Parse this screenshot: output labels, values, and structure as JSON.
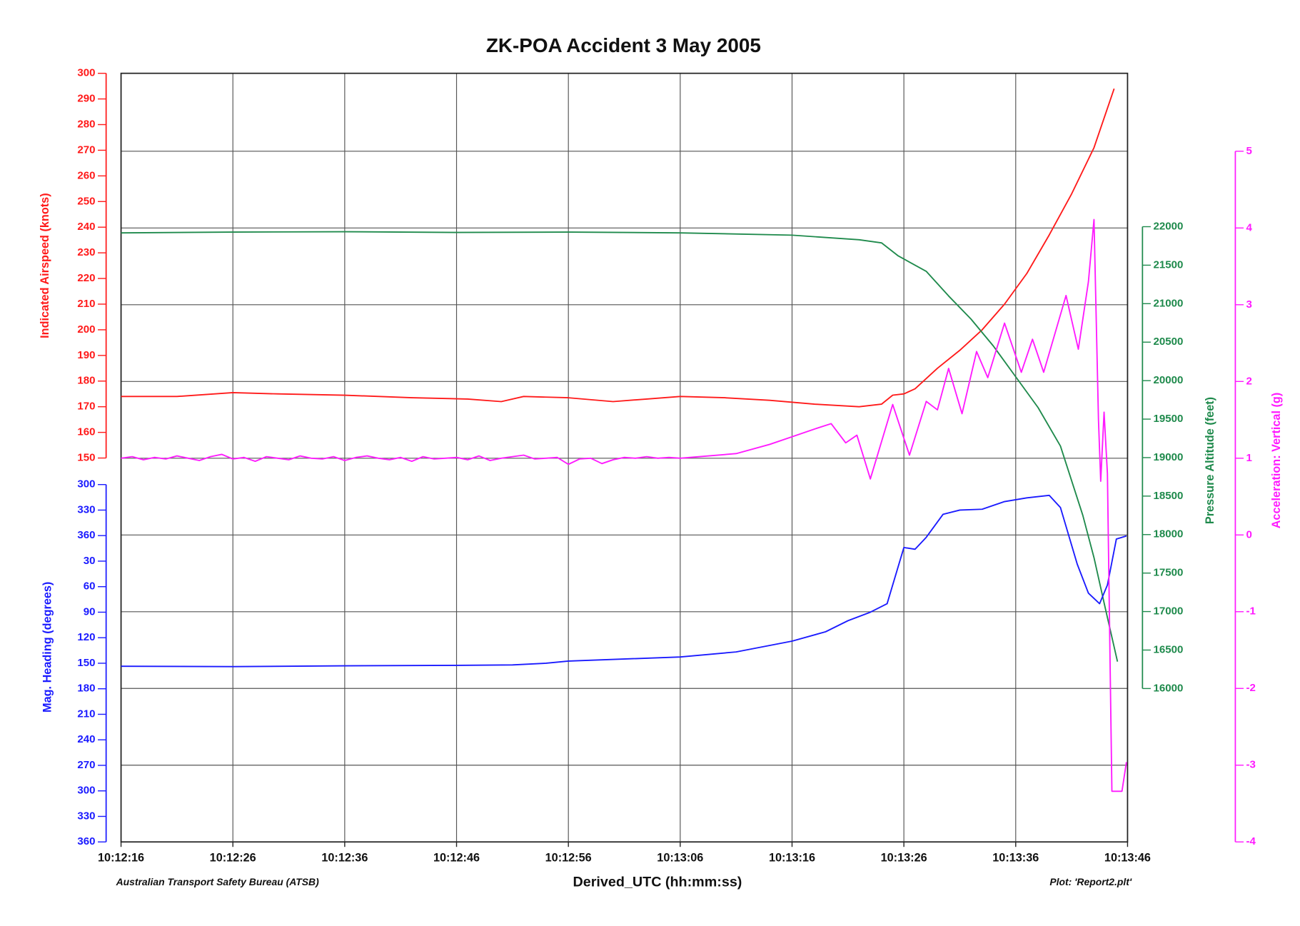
{
  "chart_data": {
    "type": "line",
    "title": "ZK-POA   Accident   3   May   2005",
    "xlabel": "Derived_UTC   (hh:mm:ss)",
    "notes": [
      "Australian   Transport   Safety   Bureau   (ATSB)",
      "Plot:   'Report2.plt'"
    ],
    "xlim": [
      36736,
      36826
    ],
    "xticks": [
      {
        "value": 36736,
        "label": "10:12:16"
      },
      {
        "value": 36746,
        "label": "10:12:26"
      },
      {
        "value": 36756,
        "label": "10:12:36"
      },
      {
        "value": 36766,
        "label": "10:12:46"
      },
      {
        "value": 36776,
        "label": "10:12:56"
      },
      {
        "value": 36786,
        "label": "10:13:06"
      },
      {
        "value": 36796,
        "label": "10:13:16"
      },
      {
        "value": 36806,
        "label": "10:13:26"
      },
      {
        "value": 36816,
        "label": "10:13:36"
      },
      {
        "value": 36826,
        "label": "10:13:46"
      }
    ],
    "ylabel": "Indicated   Airspeed   (knots)",
    "ylim": [
      150,
      300
    ],
    "yticks": [
      150,
      160,
      170,
      180,
      190,
      200,
      210,
      220,
      230,
      240,
      250,
      260,
      270,
      280,
      290,
      300
    ],
    "y3label": "Mag.   Heading   (degrees)",
    "y3lim": [
      720,
      300
    ],
    "y3ticks": [
      {
        "value": 300,
        "label": "300"
      },
      {
        "value": 330,
        "label": "330"
      },
      {
        "value": 360,
        "label": "360"
      },
      {
        "value": 390,
        "label": "30"
      },
      {
        "value": 420,
        "label": "60"
      },
      {
        "value": 450,
        "label": "90"
      },
      {
        "value": 480,
        "label": "120"
      },
      {
        "value": 510,
        "label": "150"
      },
      {
        "value": 540,
        "label": "180"
      },
      {
        "value": 570,
        "label": "210"
      },
      {
        "value": 600,
        "label": "240"
      },
      {
        "value": 630,
        "label": "270"
      },
      {
        "value": 660,
        "label": "300"
      },
      {
        "value": 690,
        "label": "330"
      },
      {
        "value": 720,
        "label": "360"
      }
    ],
    "y2label": "Pressure   Altitude   (feet)",
    "y2lim": [
      16000,
      22000
    ],
    "y2ticks": [
      16000,
      16500,
      17000,
      17500,
      18000,
      18500,
      19000,
      19500,
      20000,
      20500,
      21000,
      21500,
      22000
    ],
    "y4label": "Acceleration:   Vertical   (g)",
    "y4lim": [
      -4,
      5
    ],
    "y4ticks": [
      -4,
      -3,
      -2,
      -1,
      0,
      1,
      2,
      3,
      4,
      5
    ],
    "grid": true,
    "grid_axis": "y4",
    "series": [
      {
        "axis": "y",
        "color": "#ff1a1a",
        "x": [
          36736,
          36741,
          36746,
          36750,
          36756,
          36762,
          36767,
          36770,
          36772,
          36776,
          36780,
          36783,
          36786,
          36790,
          36794,
          36798,
          36802,
          36804,
          36805,
          36806,
          36807,
          36809,
          36811,
          36813,
          36815,
          36817,
          36819,
          36821,
          36823,
          36824.8
        ],
        "values": [
          174,
          174,
          175.5,
          175,
          174.5,
          173.5,
          173,
          172,
          174,
          173.5,
          172,
          173,
          174,
          173.5,
          172.5,
          171,
          170,
          171,
          174.5,
          175,
          177,
          185,
          192,
          200,
          210,
          222,
          237,
          253,
          271,
          294
        ]
      },
      {
        "axis": "y2",
        "color": "#1f8a4c",
        "x": [
          36736,
          36746,
          36756,
          36766,
          36776,
          36786,
          36796,
          36802,
          36804,
          36805.5,
          36807,
          36808,
          36810,
          36812,
          36814,
          36816,
          36818,
          36820,
          36822,
          36823,
          36824,
          36825.1
        ],
        "values": [
          21920,
          21930,
          21935,
          21925,
          21930,
          21920,
          21890,
          21830,
          21790,
          21620,
          21500,
          21420,
          21100,
          20800,
          20450,
          20050,
          19650,
          19150,
          18250,
          17700,
          17050,
          16350
        ]
      },
      {
        "axis": "y3",
        "color": "#1a1aff",
        "x": [
          36736,
          36746,
          36756,
          36766,
          36771,
          36774,
          36776,
          36786,
          36791,
          36796,
          36799,
          36801,
          36803,
          36804.5,
          36806,
          36807,
          36808,
          36809.5,
          36811,
          36813,
          36815,
          36817,
          36819,
          36820,
          36821.5,
          36822.5,
          36823.5,
          36824.2,
          36825,
          36825.9
        ],
        "values": [
          513.5,
          514,
          513,
          512.5,
          512,
          510,
          507.5,
          502.6,
          496.7,
          484,
          473,
          460,
          450,
          440,
          374,
          376,
          362,
          335,
          330,
          329,
          320,
          315.6,
          312.7,
          327,
          393.5,
          427.6,
          440,
          418,
          364,
          360.4
        ]
      },
      {
        "axis": "y4",
        "color": "#ff1aff",
        "x": [
          36736,
          36737,
          36738,
          36739,
          36740,
          36741,
          36742,
          36743,
          36744,
          36745,
          36746,
          36747,
          36748,
          36749,
          36750,
          36751,
          36752,
          36753,
          36754,
          36755,
          36756,
          36757,
          36758,
          36759,
          36760,
          36761,
          36762,
          36763,
          36764,
          36765,
          36766,
          36767,
          36768,
          36769,
          36770,
          36771,
          36772,
          36773,
          36774,
          36775,
          36776,
          36777,
          36778,
          36779,
          36780,
          36781,
          36782,
          36783,
          36784,
          36785,
          36786,
          36791,
          36794,
          36796,
          36798,
          36799.5,
          36800.8,
          36801.8,
          36803,
          36805,
          36806.5,
          36808,
          36809,
          36810,
          36811.2,
          36812.5,
          36813.5,
          36815,
          36816.5,
          36817.5,
          36818.5,
          36820.5,
          36821.6,
          36822.5,
          36823,
          36823.4,
          36823.6,
          36823.9,
          36824.2,
          36824.6,
          36825.5,
          36825.9
        ],
        "values": [
          1.0,
          1.02,
          0.98,
          1.01,
          0.99,
          1.03,
          1.0,
          0.97,
          1.02,
          1.05,
          0.99,
          1.01,
          0.96,
          1.02,
          1.0,
          0.98,
          1.03,
          1.0,
          0.99,
          1.02,
          0.97,
          1.01,
          1.03,
          1.0,
          0.98,
          1.01,
          0.96,
          1.02,
          0.99,
          1.0,
          1.01,
          0.98,
          1.03,
          0.97,
          1.0,
          1.02,
          1.04,
          0.99,
          1.0,
          1.01,
          0.92,
          0.99,
          1.0,
          0.93,
          0.98,
          1.01,
          1.0,
          1.02,
          1.0,
          1.01,
          1.0,
          1.06,
          1.18,
          1.28,
          1.38,
          1.45,
          1.2,
          1.3,
          0.73,
          1.7,
          1.04,
          1.74,
          1.63,
          2.17,
          1.58,
          2.39,
          2.05,
          2.76,
          2.12,
          2.55,
          2.12,
          3.12,
          2.42,
          3.3,
          4.11,
          1.5,
          0.7,
          1.6,
          0.8,
          -3.34,
          -3.34,
          -2.96
        ]
      }
    ]
  }
}
